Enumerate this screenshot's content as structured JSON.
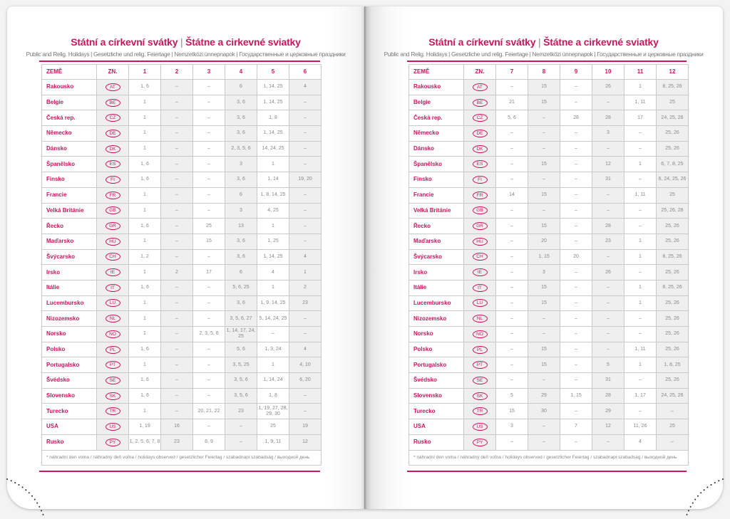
{
  "title_cz": "Státní a církevní svátky",
  "title_sk": "Štátne a cirkevné sviatky",
  "title_separator": "|",
  "subtitle": "Public and Relig. Holidays | Gesetzliche und relig. Feiertage | Nemzetközi ünnepnapok | Государственные и церковные праздники",
  "accent_color": "#c8175d",
  "footnote": "* náhradní den volna / náhradný deň voľna / holidays observed / gesetzlicher Feiertag / szabadnapi szabadság / выходной день",
  "countries": [
    {
      "name": "Rakousko",
      "code": "AT"
    },
    {
      "name": "Belgie",
      "code": "BE"
    },
    {
      "name": "Česká rep.",
      "code": "CZ"
    },
    {
      "name": "Německo",
      "code": "DE"
    },
    {
      "name": "Dánsko",
      "code": "DK"
    },
    {
      "name": "Španělsko",
      "code": "ES"
    },
    {
      "name": "Finsko",
      "code": "FI"
    },
    {
      "name": "Francie",
      "code": "FR"
    },
    {
      "name": "Velká Británie",
      "code": "GB"
    },
    {
      "name": "Řecko",
      "code": "GR"
    },
    {
      "name": "Maďarsko",
      "code": "HU"
    },
    {
      "name": "Švýcarsko",
      "code": "CH"
    },
    {
      "name": "Irsko",
      "code": "IE"
    },
    {
      "name": "Itálie",
      "code": "IT"
    },
    {
      "name": "Lucembursko",
      "code": "LU"
    },
    {
      "name": "Nizozemsko",
      "code": "NL"
    },
    {
      "name": "Norsko",
      "code": "NO"
    },
    {
      "name": "Polsko",
      "code": "PL"
    },
    {
      "name": "Portugalsko",
      "code": "PT"
    },
    {
      "name": "Švédsko",
      "code": "SE"
    },
    {
      "name": "Slovensko",
      "code": "SK"
    },
    {
      "name": "Turecko",
      "code": "TR"
    },
    {
      "name": "USA",
      "code": "US"
    },
    {
      "name": "Rusko",
      "code": "PY"
    }
  ],
  "left_table": {
    "headers": [
      "ZEMĚ",
      "ZN.",
      "1",
      "2",
      "3",
      "4",
      "5",
      "6"
    ],
    "rows": [
      [
        "1, 6",
        "–",
        "–",
        "6",
        "1, 14, 25",
        "4"
      ],
      [
        "1",
        "–",
        "–",
        "3, 6",
        "1, 14, 25",
        "–"
      ],
      [
        "1",
        "–",
        "–",
        "3, 6",
        "1, 8",
        "–"
      ],
      [
        "1",
        "–",
        "–",
        "3, 6",
        "1, 14, 25",
        "–"
      ],
      [
        "1",
        "–",
        "–",
        "2, 3, 5, 6",
        "14, 24, 25",
        "–"
      ],
      [
        "1, 6",
        "–",
        "–",
        "3",
        "1",
        "–"
      ],
      [
        "1, 6",
        "–",
        "–",
        "3, 6",
        "1, 14",
        "19, 20"
      ],
      [
        "1",
        "–",
        "–",
        "6",
        "1, 8, 14, 25",
        "–"
      ],
      [
        "1",
        "–",
        "–",
        "3",
        "4, 25",
        "–"
      ],
      [
        "1, 6",
        "–",
        "25",
        "13",
        "1",
        "–"
      ],
      [
        "1",
        "–",
        "15",
        "3, 6",
        "1, 25",
        "–"
      ],
      [
        "1, 2",
        "–",
        "–",
        "3, 6",
        "1, 14, 25",
        "4"
      ],
      [
        "1",
        "2",
        "17",
        "6",
        "4",
        "1"
      ],
      [
        "1, 6",
        "–",
        "–",
        "5, 6, 25",
        "1",
        "2"
      ],
      [
        "1",
        "–",
        "–",
        "3, 6",
        "1, 9, 14, 25",
        "23"
      ],
      [
        "1",
        "–",
        "–",
        "3, 5, 6, 27",
        "5, 14, 24, 25",
        "–"
      ],
      [
        "1",
        "–",
        "2, 3, 5, 6",
        "1, 14, 17, 24, 25",
        "–",
        "–"
      ],
      [
        "1, 6",
        "–",
        "–",
        "5, 6",
        "1, 3, 24",
        "4"
      ],
      [
        "1",
        "–",
        "–",
        "3, 5, 25",
        "1",
        "4, 10"
      ],
      [
        "1, 6",
        "–",
        "–",
        "3, 5, 6",
        "1, 14, 24",
        "6, 20"
      ],
      [
        "1, 6",
        "–",
        "–",
        "3, 5, 6",
        "1, 8",
        "–"
      ],
      [
        "1",
        "–",
        "20, 21, 22",
        "23",
        "1, 19, 27, 28, 29, 30",
        "–"
      ],
      [
        "1, 19",
        "16",
        "–",
        "–",
        "25",
        "19"
      ],
      [
        "1, 2, 5, 6, 7, 8",
        "23",
        "8, 9",
        "–",
        "1, 9, 11",
        "12"
      ]
    ]
  },
  "right_table": {
    "headers": [
      "ZEMĚ",
      "ZN.",
      "7",
      "8",
      "9",
      "10",
      "11",
      "12"
    ],
    "rows": [
      [
        "–",
        "15",
        "–",
        "26",
        "1",
        "8, 25, 26"
      ],
      [
        "21",
        "15",
        "–",
        "–",
        "1, 11",
        "25"
      ],
      [
        "5, 6",
        "–",
        "28",
        "28",
        "17",
        "24, 25, 26"
      ],
      [
        "–",
        "–",
        "–",
        "3",
        "–",
        "25, 26"
      ],
      [
        "–",
        "–",
        "–",
        "–",
        "–",
        "25, 26"
      ],
      [
        "–",
        "15",
        "–",
        "12",
        "1",
        "6, 7, 8, 25"
      ],
      [
        "–",
        "–",
        "–",
        "31",
        "–",
        "6, 24, 25, 26"
      ],
      [
        "14",
        "15",
        "–",
        "–",
        "1, 11",
        "25"
      ],
      [
        "–",
        "–",
        "–",
        "–",
        "–",
        "25, 26, 28"
      ],
      [
        "–",
        "15",
        "–",
        "28",
        "–",
        "25, 26"
      ],
      [
        "–",
        "20",
        "–",
        "23",
        "1",
        "25, 26"
      ],
      [
        "–",
        "1, 15",
        "20",
        "–",
        "1",
        "8, 25, 26"
      ],
      [
        "–",
        "3",
        "–",
        "26",
        "–",
        "25, 26"
      ],
      [
        "–",
        "15",
        "–",
        "–",
        "1",
        "8, 25, 26"
      ],
      [
        "–",
        "15",
        "–",
        "–",
        "1",
        "25, 26"
      ],
      [
        "–",
        "–",
        "–",
        "–",
        "–",
        "25, 26"
      ],
      [
        "–",
        "–",
        "–",
        "–",
        "–",
        "25, 26"
      ],
      [
        "–",
        "15",
        "–",
        "–",
        "1, 11",
        "25, 26"
      ],
      [
        "–",
        "15",
        "–",
        "5",
        "1",
        "1, 8, 25"
      ],
      [
        "–",
        "–",
        "–",
        "31",
        "–",
        "25, 26"
      ],
      [
        "5",
        "29",
        "1, 15",
        "28",
        "1, 17",
        "24, 25, 26"
      ],
      [
        "15",
        "30",
        "–",
        "29",
        "–",
        "–"
      ],
      [
        "3",
        "–",
        "7",
        "12",
        "11, 26",
        "25"
      ],
      [
        "–",
        "–",
        "–",
        "–",
        "4",
        "–"
      ]
    ]
  }
}
